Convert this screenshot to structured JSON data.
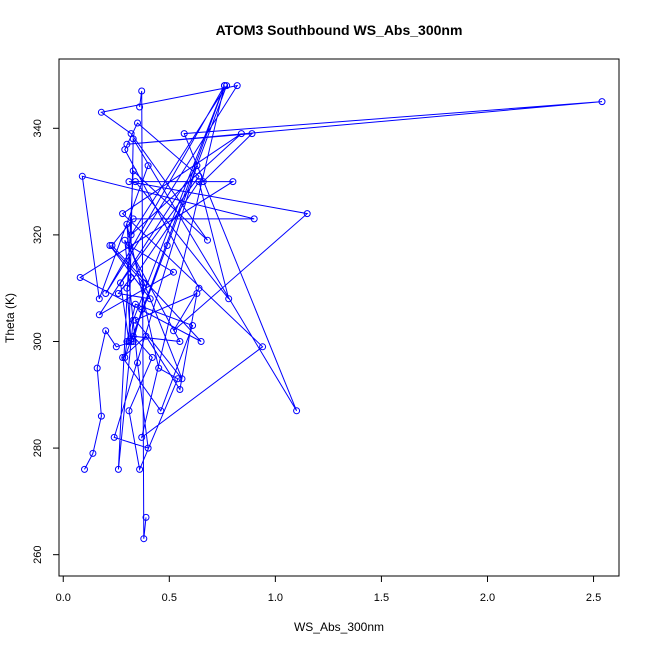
{
  "chart_data": {
    "type": "line",
    "title": "ATOM3 Southbound WS_Abs_300nm",
    "xlabel": "WS_Abs_300nm",
    "ylabel": "Theta (K)",
    "xlim": [
      -0.02,
      2.62
    ],
    "ylim": [
      256,
      353
    ],
    "xticks": [
      0.0,
      0.5,
      1.0,
      1.5,
      2.0,
      2.5
    ],
    "xtick_labels": [
      "0.0",
      "0.5",
      "1.0",
      "1.5",
      "2.0",
      "2.5"
    ],
    "yticks": [
      260,
      280,
      300,
      320,
      340
    ],
    "ytick_labels": [
      "260",
      "280",
      "300",
      "320",
      "340"
    ],
    "grid": false,
    "legend": "none",
    "markers": "open-circle",
    "colors": {
      "series": "#0000ff",
      "axes": "#000000",
      "background": "#ffffff"
    },
    "series": [
      {
        "x": [
          0.1,
          0.14,
          0.18,
          0.16,
          0.2,
          0.25,
          0.33,
          0.37,
          0.38,
          0.22,
          0.41,
          0.26,
          0.32,
          0.3,
          0.45,
          0.54,
          0.36,
          0.31,
          0.42,
          0.33,
          0.55,
          0.29,
          0.35,
          0.4,
          0.24,
          0.63,
          0.17,
          0.52,
          0.31,
          0.56,
          0.34,
          0.63,
          0.55,
          0.39,
          0.28,
          0.46,
          0.61,
          0.34,
          0.3,
          0.29,
          0.76,
          0.33,
          0.26,
          0.33,
          0.68,
          0.32,
          0.18,
          0.82,
          0.2,
          0.76,
          0.37,
          0.94,
          0.28,
          0.84,
          0.32,
          0.77,
          0.49,
          0.32,
          0.3,
          0.64,
          0.78,
          0.34,
          0.66,
          0.89,
          0.3,
          2.54,
          0.57,
          1.1,
          0.33,
          0.31,
          0.27,
          0.64,
          0.35,
          0.29,
          0.64,
          0.52,
          1.15,
          0.31,
          0.8,
          0.08,
          0.65,
          0.23,
          0.33,
          0.9,
          0.09,
          0.17,
          0.4
        ],
        "y": [
          276,
          279,
          286,
          295,
          302,
          299,
          300,
          306,
          311,
          318,
          308,
          309,
          312,
          322,
          295,
          293,
          276,
          287,
          297,
          301,
          300,
          319,
          296,
          280,
          282,
          333,
          305,
          313,
          318,
          293,
          304,
          309,
          291,
          301,
          297,
          287,
          303,
          307,
          300,
          297,
          348,
          304,
          276,
          332,
          319,
          339,
          343,
          348,
          309,
          348,
          282,
          299,
          324,
          339,
          320,
          348,
          318,
          300,
          310,
          330,
          308,
          330,
          330,
          339,
          337,
          345,
          339,
          287,
          338,
          300,
          311,
          331,
          341,
          336,
          310,
          302,
          324,
          330,
          330,
          312,
          300,
          318,
          323,
          323,
          331,
          308,
          333
        ]
      },
      {
        "x": [
          0.36,
          0.37,
          0.38,
          0.39
        ],
        "y": [
          344,
          347,
          263,
          267
        ]
      }
    ]
  }
}
